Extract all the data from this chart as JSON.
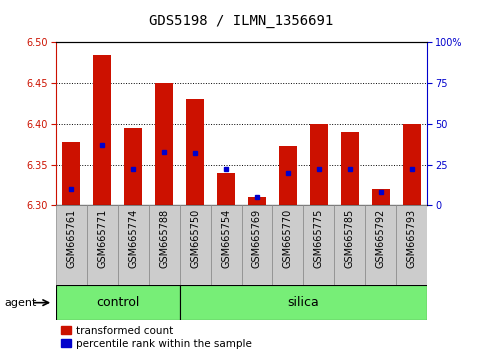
{
  "title": "GDS5198 / ILMN_1356691",
  "samples": [
    "GSM665761",
    "GSM665771",
    "GSM665774",
    "GSM665788",
    "GSM665750",
    "GSM665754",
    "GSM665769",
    "GSM665770",
    "GSM665775",
    "GSM665785",
    "GSM665792",
    "GSM665793"
  ],
  "red_values": [
    6.378,
    6.485,
    6.395,
    6.45,
    6.43,
    6.34,
    6.31,
    6.373,
    6.4,
    6.39,
    6.32,
    6.4
  ],
  "blue_pct": [
    10,
    37,
    22,
    33,
    32,
    22,
    5,
    20,
    22,
    22,
    8,
    22
  ],
  "ymin": 6.3,
  "ymax": 6.5,
  "yticks_left": [
    6.3,
    6.35,
    6.4,
    6.45,
    6.5
  ],
  "yticks_right": [
    0,
    25,
    50,
    75,
    100
  ],
  "bar_color": "#CC1100",
  "blue_color": "#0000CC",
  "control_count": 4,
  "control_label": "control",
  "silica_label": "silica",
  "agent_label": "agent",
  "legend_red": "transformed count",
  "legend_blue": "percentile rank within the sample",
  "bar_width": 0.6,
  "group_bar_color": "#77EE77",
  "tick_label_bg": "#cccccc",
  "title_fontsize": 10,
  "tick_fontsize": 7,
  "label_fontsize": 8,
  "group_fontsize": 9,
  "legend_fontsize": 7.5
}
